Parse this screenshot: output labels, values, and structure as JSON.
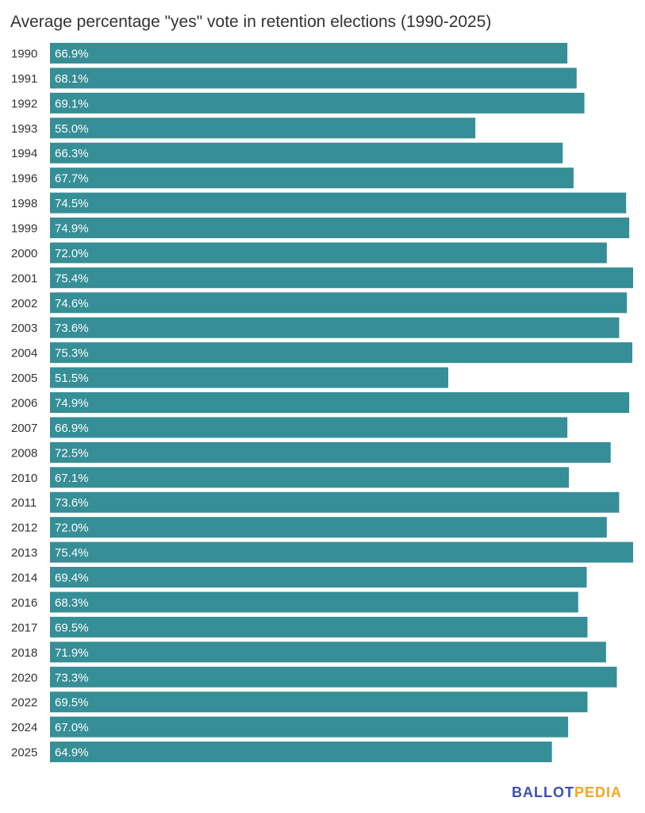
{
  "chart_data": {
    "type": "bar",
    "orientation": "horizontal",
    "title": "Average percentage \"yes\" vote in retention elections (1990-2025)",
    "xlabel": "",
    "ylabel": "",
    "value_suffix": "%",
    "xlim": [
      0,
      75.4
    ],
    "grid": false,
    "bar_color": "#368e96",
    "categories": [
      "1990",
      "1991",
      "1992",
      "1993",
      "1994",
      "1996",
      "1998",
      "1999",
      "2000",
      "2001",
      "2002",
      "2003",
      "2004",
      "2005",
      "2006",
      "2007",
      "2008",
      "2010",
      "2011",
      "2012",
      "2013",
      "2014",
      "2016",
      "2017",
      "2018",
      "2020",
      "2022",
      "2024",
      "2025"
    ],
    "values": [
      66.9,
      68.1,
      69.1,
      55.0,
      66.3,
      67.7,
      74.5,
      74.9,
      72.0,
      75.4,
      74.6,
      73.6,
      75.3,
      51.5,
      74.9,
      66.9,
      72.5,
      67.1,
      73.6,
      72.0,
      75.4,
      69.4,
      68.3,
      69.5,
      71.9,
      73.3,
      69.5,
      67.0,
      64.9
    ]
  },
  "logo": {
    "part1": "BALLOT",
    "part2": "PEDIA",
    "color1": "#3a4fb0",
    "color2": "#f5a623"
  }
}
